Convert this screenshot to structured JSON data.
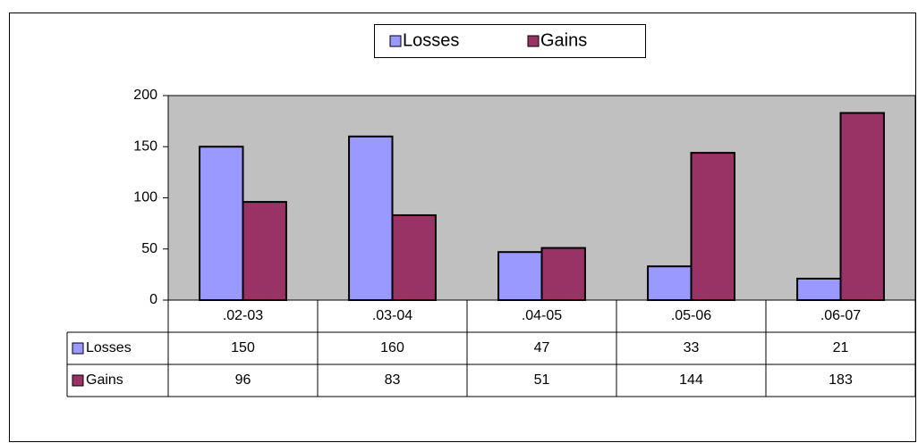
{
  "chart_data": {
    "type": "bar",
    "categories": [
      ".02-03",
      ".03-04",
      ".04-05",
      ".05-06",
      ".06-07"
    ],
    "series": [
      {
        "name": "Losses",
        "color": "#9999ff",
        "values": [
          150,
          160,
          47,
          33,
          21
        ]
      },
      {
        "name": "Gains",
        "color": "#993366",
        "values": [
          96,
          83,
          51,
          144,
          183
        ]
      }
    ],
    "ylim": [
      0,
      200
    ],
    "yticks": [
      0,
      50,
      100,
      150,
      200
    ],
    "grid": false,
    "legend": "top",
    "plot_background": "#c0c0c0",
    "data_table": true
  }
}
